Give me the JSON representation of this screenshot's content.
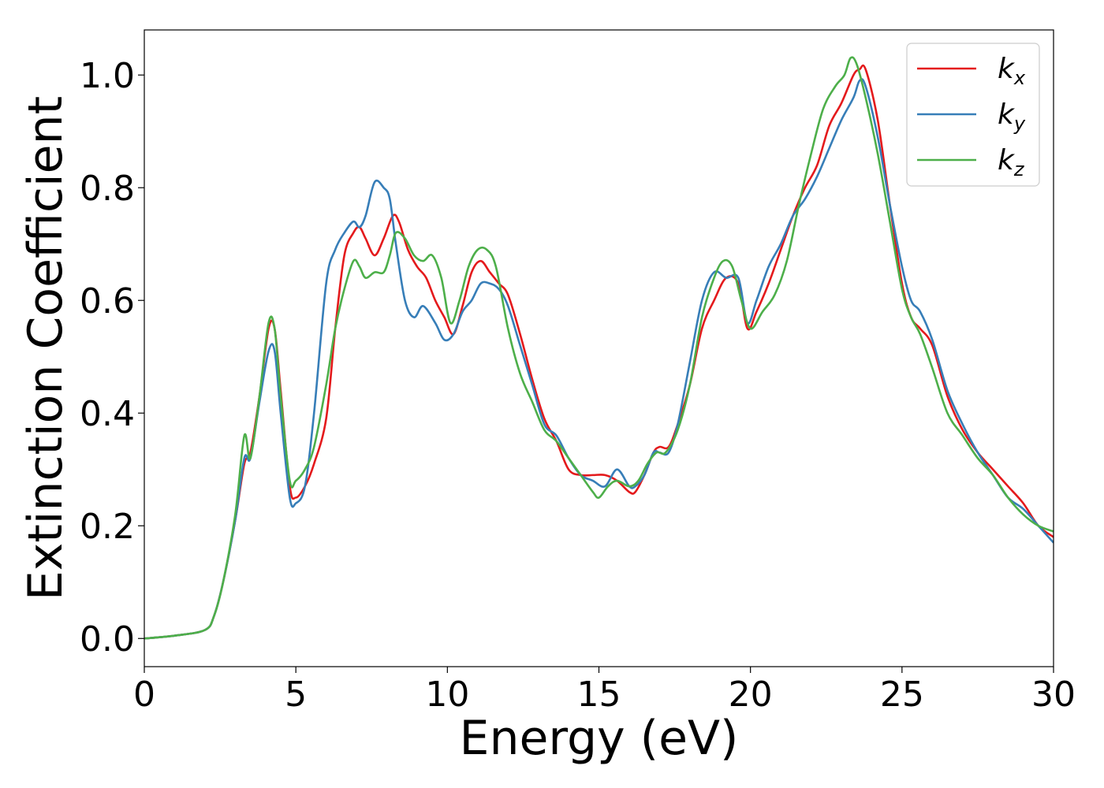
{
  "chart_data": {
    "type": "line",
    "xlabel": "Energy (eV)",
    "ylabel": "Extinction Coefficient",
    "xlim": [
      0,
      30
    ],
    "ylim": [
      -0.05,
      1.08
    ],
    "xticks": [
      0,
      5,
      10,
      15,
      20,
      25,
      30
    ],
    "xtick_labels": [
      "0",
      "5",
      "10",
      "15",
      "20",
      "25",
      "30"
    ],
    "yticks": [
      0.0,
      0.2,
      0.4,
      0.6,
      0.8,
      1.0
    ],
    "ytick_labels": [
      "0.0",
      "0.2",
      "0.4",
      "0.6",
      "0.8",
      "1.0"
    ],
    "grid": false,
    "legend_position": "top-right",
    "series": [
      {
        "name": "kx",
        "label_main": "k",
        "label_sub": "x",
        "color": "#e41a1c",
        "x": [
          0,
          1,
          2,
          2.3,
          2.6,
          3.0,
          3.3,
          3.5,
          3.8,
          4.1,
          4.3,
          4.5,
          4.8,
          5.0,
          5.3,
          5.6,
          6.0,
          6.3,
          6.6,
          6.9,
          7.1,
          7.3,
          7.6,
          7.9,
          8.2,
          8.4,
          8.7,
          9.0,
          9.3,
          9.6,
          9.9,
          10.2,
          10.5,
          10.8,
          11.1,
          11.4,
          11.7,
          12.0,
          12.4,
          12.8,
          13.2,
          13.6,
          14.0,
          14.4,
          14.8,
          15.2,
          15.6,
          16.0,
          16.2,
          16.5,
          16.8,
          17.0,
          17.3,
          17.6,
          18.0,
          18.4,
          18.8,
          19.2,
          19.6,
          19.9,
          20.2,
          20.6,
          21.0,
          21.4,
          21.8,
          22.2,
          22.6,
          23.0,
          23.4,
          23.6,
          23.8,
          24.2,
          24.6,
          25.0,
          25.3,
          25.6,
          26.0,
          26.5,
          27.0,
          27.5,
          28.0,
          28.5,
          29.0,
          29.5,
          30.0
        ],
        "values": [
          0.0,
          0.005,
          0.015,
          0.04,
          0.1,
          0.21,
          0.31,
          0.33,
          0.43,
          0.55,
          0.55,
          0.44,
          0.27,
          0.25,
          0.27,
          0.31,
          0.39,
          0.55,
          0.68,
          0.72,
          0.73,
          0.71,
          0.68,
          0.71,
          0.75,
          0.74,
          0.69,
          0.66,
          0.64,
          0.6,
          0.57,
          0.54,
          0.59,
          0.65,
          0.67,
          0.65,
          0.63,
          0.61,
          0.54,
          0.46,
          0.39,
          0.35,
          0.3,
          0.29,
          0.29,
          0.29,
          0.28,
          0.26,
          0.26,
          0.29,
          0.33,
          0.34,
          0.34,
          0.38,
          0.45,
          0.55,
          0.6,
          0.64,
          0.63,
          0.55,
          0.58,
          0.63,
          0.69,
          0.75,
          0.8,
          0.84,
          0.91,
          0.95,
          1.0,
          1.01,
          1.01,
          0.92,
          0.77,
          0.63,
          0.57,
          0.55,
          0.52,
          0.43,
          0.37,
          0.33,
          0.3,
          0.27,
          0.24,
          0.2,
          0.18
        ]
      },
      {
        "name": "ky",
        "label_main": "k",
        "label_sub": "y",
        "color": "#377eb8",
        "x": [
          0,
          1,
          2,
          2.3,
          2.6,
          3.0,
          3.3,
          3.5,
          3.8,
          4.1,
          4.3,
          4.5,
          4.8,
          5.0,
          5.3,
          5.6,
          6.0,
          6.3,
          6.6,
          6.9,
          7.1,
          7.3,
          7.6,
          7.9,
          8.1,
          8.3,
          8.6,
          8.9,
          9.2,
          9.6,
          9.9,
          10.2,
          10.5,
          10.8,
          11.1,
          11.4,
          11.7,
          12.0,
          12.4,
          12.8,
          13.2,
          13.6,
          14.0,
          14.4,
          14.8,
          15.2,
          15.6,
          16.0,
          16.2,
          16.5,
          16.8,
          17.0,
          17.3,
          17.6,
          18.0,
          18.4,
          18.8,
          19.2,
          19.6,
          19.9,
          20.2,
          20.6,
          21.0,
          21.4,
          21.8,
          22.2,
          22.6,
          23.0,
          23.4,
          23.6,
          23.8,
          24.2,
          24.6,
          25.0,
          25.3,
          25.6,
          26.0,
          26.5,
          27.0,
          27.5,
          28.0,
          28.5,
          29.0,
          29.5,
          30.0
        ],
        "values": [
          0.0,
          0.005,
          0.015,
          0.04,
          0.1,
          0.21,
          0.32,
          0.32,
          0.42,
          0.51,
          0.51,
          0.4,
          0.25,
          0.24,
          0.27,
          0.4,
          0.63,
          0.69,
          0.72,
          0.74,
          0.73,
          0.75,
          0.81,
          0.8,
          0.78,
          0.7,
          0.6,
          0.57,
          0.59,
          0.56,
          0.53,
          0.54,
          0.58,
          0.6,
          0.63,
          0.63,
          0.62,
          0.59,
          0.52,
          0.45,
          0.38,
          0.36,
          0.32,
          0.29,
          0.28,
          0.27,
          0.3,
          0.27,
          0.27,
          0.29,
          0.33,
          0.33,
          0.33,
          0.38,
          0.49,
          0.6,
          0.65,
          0.64,
          0.64,
          0.56,
          0.6,
          0.66,
          0.7,
          0.75,
          0.78,
          0.82,
          0.87,
          0.92,
          0.96,
          0.99,
          0.98,
          0.89,
          0.77,
          0.66,
          0.6,
          0.58,
          0.53,
          0.44,
          0.38,
          0.33,
          0.29,
          0.25,
          0.23,
          0.2,
          0.17
        ]
      },
      {
        "name": "kz",
        "label_main": "k",
        "label_sub": "z",
        "color": "#4daf4a",
        "x": [
          0,
          1,
          2,
          2.3,
          2.6,
          3.0,
          3.3,
          3.5,
          3.8,
          4.1,
          4.3,
          4.5,
          4.8,
          5.0,
          5.3,
          5.6,
          6.0,
          6.3,
          6.6,
          6.9,
          7.1,
          7.3,
          7.6,
          7.9,
          8.1,
          8.3,
          8.6,
          8.9,
          9.2,
          9.5,
          9.8,
          10.1,
          10.4,
          10.7,
          11.0,
          11.3,
          11.6,
          12.0,
          12.4,
          12.8,
          13.2,
          13.6,
          14.0,
          14.4,
          14.8,
          15.0,
          15.3,
          15.6,
          16.0,
          16.3,
          16.6,
          16.9,
          17.2,
          17.6,
          18.0,
          18.4,
          18.8,
          19.1,
          19.4,
          19.7,
          20.0,
          20.4,
          20.8,
          21.2,
          21.6,
          22.0,
          22.4,
          22.8,
          23.1,
          23.3,
          23.5,
          23.8,
          24.2,
          24.6,
          25.0,
          25.3,
          25.6,
          26.0,
          26.5,
          27.0,
          27.5,
          28.0,
          28.5,
          29.0,
          29.5,
          30.0
        ],
        "values": [
          0.0,
          0.005,
          0.015,
          0.04,
          0.1,
          0.22,
          0.36,
          0.32,
          0.43,
          0.56,
          0.55,
          0.43,
          0.28,
          0.28,
          0.3,
          0.34,
          0.45,
          0.55,
          0.62,
          0.67,
          0.66,
          0.64,
          0.65,
          0.65,
          0.68,
          0.72,
          0.71,
          0.68,
          0.67,
          0.68,
          0.64,
          0.56,
          0.6,
          0.66,
          0.69,
          0.69,
          0.66,
          0.55,
          0.47,
          0.42,
          0.37,
          0.35,
          0.32,
          0.29,
          0.26,
          0.25,
          0.27,
          0.28,
          0.27,
          0.28,
          0.31,
          0.33,
          0.33,
          0.37,
          0.45,
          0.57,
          0.64,
          0.67,
          0.66,
          0.6,
          0.55,
          0.58,
          0.61,
          0.67,
          0.77,
          0.86,
          0.94,
          0.98,
          1.0,
          1.03,
          1.02,
          0.96,
          0.86,
          0.74,
          0.62,
          0.57,
          0.54,
          0.48,
          0.4,
          0.36,
          0.32,
          0.29,
          0.25,
          0.22,
          0.2,
          0.19
        ]
      }
    ]
  }
}
